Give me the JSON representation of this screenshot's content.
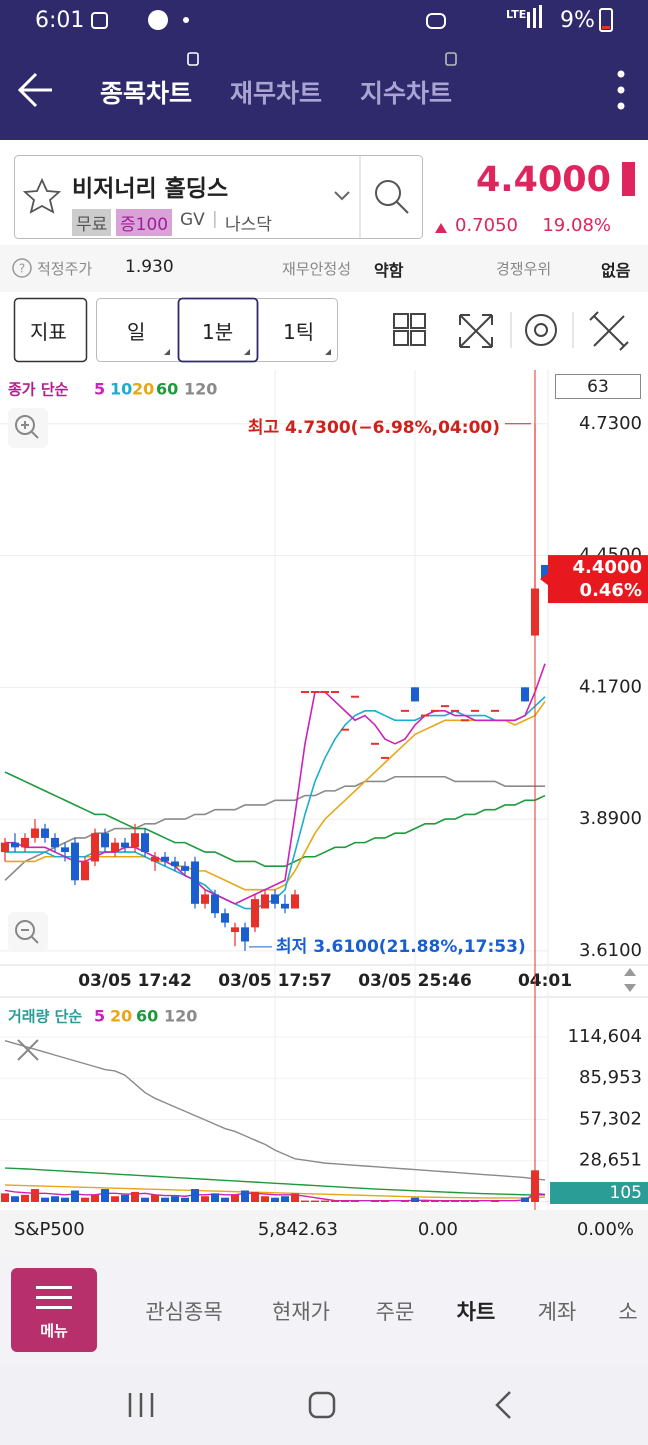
{
  "status_bar": {
    "time": "6:01",
    "network": "LTE",
    "battery": "9%"
  },
  "header": {
    "tabs": [
      "종목차트",
      "재무차트",
      "지수차트"
    ]
  },
  "stock": {
    "name": "비저너리 홀딩스",
    "tags": [
      "무료",
      "증100",
      "GV",
      "나스닥"
    ],
    "price": "4.4000",
    "change": "0.7050",
    "change_pct": "19.08%"
  },
  "info_bar": {
    "items": [
      {
        "label": "적정주가",
        "value": "1.930"
      },
      {
        "label": "재무안정성",
        "value": "약함"
      },
      {
        "label": "경쟁우위",
        "value": "없음"
      }
    ]
  },
  "toolbar": {
    "buttons": [
      "지표",
      "일",
      "1분",
      "1틱"
    ]
  },
  "chart_data": [
    {
      "type": "candlestick",
      "legend_title": "종가 단순",
      "counter": 63,
      "categories": [
        null,
        null,
        null,
        null,
        null,
        null,
        null,
        null,
        null,
        null,
        null,
        null,
        null,
        "03/05 17:42",
        null,
        null,
        null,
        null,
        null,
        null,
        null,
        null,
        null,
        null,
        null,
        null,
        null,
        "03/05 17:57",
        null,
        null,
        null,
        null,
        null,
        null,
        null,
        null,
        null,
        null,
        null,
        null,
        null,
        "03/05 25:46",
        null,
        null,
        null,
        null,
        null,
        null,
        null,
        null,
        null,
        null,
        null,
        null,
        "04:01"
      ],
      "open": [
        3.82,
        3.84,
        3.83,
        3.85,
        3.87,
        3.85,
        3.83,
        3.84,
        3.76,
        3.8,
        3.86,
        3.82,
        3.84,
        3.83,
        3.86,
        3.8,
        3.81,
        3.8,
        3.79,
        3.8,
        3.71,
        3.73,
        3.69,
        3.65,
        3.66,
        3.66,
        3.7,
        3.73,
        3.71,
        3.7,
        4.16,
        4.16,
        4.16,
        4.16,
        4.08,
        4.15,
        null,
        4.05,
        4.02,
        null,
        4.12,
        4.17,
        4.11,
        4.12,
        4.13,
        4.12,
        4.1,
        4.12,
        null,
        4.12,
        null,
        null,
        4.17,
        4.28,
        4.43
      ],
      "high": [
        3.85,
        3.86,
        3.86,
        3.89,
        3.88,
        3.86,
        3.84,
        3.85,
        3.81,
        3.87,
        3.87,
        3.85,
        3.85,
        3.88,
        3.87,
        3.82,
        3.82,
        3.81,
        3.8,
        3.81,
        3.74,
        3.74,
        3.7,
        3.67,
        3.67,
        3.73,
        3.74,
        3.74,
        3.73,
        3.74,
        4.16,
        4.16,
        4.16,
        4.16,
        4.08,
        4.15,
        null,
        4.05,
        4.02,
        null,
        4.12,
        4.17,
        4.11,
        4.12,
        4.13,
        4.12,
        4.1,
        4.12,
        null,
        4.12,
        null,
        null,
        4.17,
        4.73,
        4.43
      ],
      "low": [
        3.8,
        3.82,
        3.82,
        3.84,
        3.84,
        3.82,
        3.8,
        3.75,
        3.76,
        3.79,
        3.82,
        3.81,
        3.82,
        3.82,
        3.81,
        3.78,
        3.79,
        3.78,
        3.77,
        3.7,
        3.7,
        3.68,
        3.66,
        3.62,
        3.61,
        3.65,
        3.7,
        3.7,
        3.69,
        3.7,
        4.16,
        4.16,
        4.16,
        4.16,
        4.08,
        4.15,
        null,
        4.05,
        4.02,
        null,
        4.12,
        4.14,
        4.11,
        4.12,
        4.13,
        4.12,
        4.1,
        4.12,
        null,
        4.12,
        null,
        null,
        4.14,
        4.28,
        4.4
      ],
      "close": [
        3.84,
        3.83,
        3.85,
        3.87,
        3.85,
        3.83,
        3.82,
        3.76,
        3.8,
        3.86,
        3.83,
        3.84,
        3.83,
        3.86,
        3.82,
        3.81,
        3.8,
        3.79,
        3.78,
        3.71,
        3.73,
        3.69,
        3.67,
        3.66,
        3.63,
        3.72,
        3.73,
        3.71,
        3.7,
        3.73,
        4.16,
        4.16,
        4.16,
        4.16,
        4.08,
        4.15,
        null,
        4.05,
        4.02,
        null,
        4.12,
        4.14,
        4.11,
        4.12,
        4.13,
        4.12,
        4.1,
        4.12,
        null,
        4.12,
        null,
        null,
        4.14,
        4.38,
        4.4
      ],
      "series": [
        {
          "name": "5",
          "color": "#cc22bb",
          "values": [
            3.84,
            3.84,
            3.83,
            3.83,
            3.83,
            3.82,
            3.81,
            3.8,
            3.8,
            3.81,
            3.82,
            3.82,
            3.83,
            3.83,
            3.82,
            3.81,
            3.8,
            3.79,
            3.77,
            3.76,
            3.74,
            3.73,
            3.72,
            3.71,
            3.72,
            3.73,
            3.74,
            3.75,
            3.76,
            3.9,
            4.05,
            4.16,
            4.16,
            4.14,
            4.12,
            4.1,
            4.11,
            4.09,
            4.06,
            4.05,
            4.06,
            4.09,
            4.11,
            4.12,
            4.12,
            4.11,
            4.11,
            4.1,
            4.1,
            4.1,
            4.1,
            4.1,
            4.11,
            4.16,
            4.22
          ]
        },
        {
          "name": "10",
          "color": "#1aaecc",
          "values": [
            3.82,
            3.82,
            3.82,
            3.82,
            3.82,
            3.81,
            3.81,
            3.81,
            3.81,
            3.82,
            3.82,
            3.82,
            3.82,
            3.82,
            3.81,
            3.8,
            3.79,
            3.78,
            3.77,
            3.76,
            3.75,
            3.73,
            3.72,
            3.71,
            3.7,
            3.7,
            3.71,
            3.72,
            3.74,
            3.82,
            3.9,
            3.97,
            4.02,
            4.06,
            4.09,
            4.11,
            4.12,
            4.12,
            4.11,
            4.1,
            4.1,
            4.1,
            4.11,
            4.11,
            4.11,
            4.12,
            4.11,
            4.11,
            4.11,
            4.1,
            4.1,
            4.1,
            4.11,
            4.13,
            4.15
          ]
        },
        {
          "name": "20",
          "color": "#e6a817",
          "values": [
            3.8,
            3.8,
            3.8,
            3.8,
            3.81,
            3.81,
            3.81,
            3.81,
            3.81,
            3.81,
            3.81,
            3.81,
            3.81,
            3.81,
            3.81,
            3.8,
            3.8,
            3.79,
            3.79,
            3.78,
            3.78,
            3.77,
            3.76,
            3.75,
            3.74,
            3.74,
            3.74,
            3.74,
            3.75,
            3.78,
            3.82,
            3.86,
            3.89,
            3.91,
            3.93,
            3.95,
            3.97,
            3.99,
            4.01,
            4.03,
            4.05,
            4.07,
            4.08,
            4.09,
            4.1,
            4.1,
            4.1,
            4.1,
            4.1,
            4.1,
            4.1,
            4.09,
            4.1,
            4.11,
            4.14
          ]
        },
        {
          "name": "60",
          "color": "#1e9a3c",
          "values": [
            3.99,
            3.98,
            3.97,
            3.96,
            3.95,
            3.94,
            3.93,
            3.92,
            3.91,
            3.9,
            3.9,
            3.89,
            3.88,
            3.87,
            3.87,
            3.86,
            3.85,
            3.84,
            3.84,
            3.83,
            3.82,
            3.82,
            3.81,
            3.8,
            3.8,
            3.8,
            3.79,
            3.79,
            3.79,
            3.8,
            3.81,
            3.81,
            3.82,
            3.83,
            3.83,
            3.84,
            3.84,
            3.85,
            3.85,
            3.86,
            3.86,
            3.87,
            3.88,
            3.88,
            3.89,
            3.89,
            3.9,
            3.9,
            3.91,
            3.91,
            3.92,
            3.92,
            3.93,
            3.93,
            3.94
          ]
        },
        {
          "name": "120",
          "color": "#8a8a8a",
          "values": [
            3.76,
            3.78,
            3.8,
            3.81,
            3.82,
            3.83,
            3.84,
            3.85,
            3.85,
            3.86,
            3.86,
            3.87,
            3.87,
            3.87,
            3.88,
            3.88,
            3.89,
            3.89,
            3.89,
            3.9,
            3.9,
            3.91,
            3.91,
            3.91,
            3.92,
            3.92,
            3.92,
            3.93,
            3.93,
            3.93,
            3.94,
            3.94,
            3.95,
            3.95,
            3.96,
            3.96,
            3.97,
            3.97,
            3.97,
            3.98,
            3.98,
            3.98,
            3.98,
            3.98,
            3.98,
            3.97,
            3.97,
            3.97,
            3.97,
            3.97,
            3.96,
            3.96,
            3.96,
            3.96,
            3.96
          ]
        }
      ],
      "ylim": [
        3.58,
        4.84
      ],
      "yticks": [
        {
          "value": 4.73,
          "label": "4.7300"
        },
        {
          "value": 4.45,
          "label": "4.4500"
        },
        {
          "value": 4.17,
          "label": "4.1700"
        },
        {
          "value": 3.89,
          "label": "3.8900"
        },
        {
          "value": 3.61,
          "label": "3.6100"
        }
      ],
      "grid": true,
      "high_annotation": "최고 4.7300(−6.98%,04:00)",
      "low_annotation": "최저 3.6100(21.88%,17:53)",
      "last_price": {
        "value": 4.4,
        "label": "4.4000"
      },
      "last_change": "0.46%",
      "up_color": "#e8302a",
      "down_color": "#1a5fd0"
    },
    {
      "type": "bar",
      "legend_title": "거래량 단순",
      "values": [
        6000,
        4000,
        5000,
        9000,
        3000,
        4000,
        3000,
        8000,
        3000,
        5000,
        9000,
        4000,
        5000,
        7000,
        3000,
        5000,
        3000,
        4000,
        3000,
        9000,
        4000,
        6000,
        3000,
        5000,
        8000,
        7000,
        4000,
        3000,
        4000,
        6000,
        1000,
        1000,
        1000,
        1000,
        800,
        800,
        null,
        800,
        800,
        null,
        800,
        3000,
        800,
        800,
        800,
        800,
        800,
        800,
        null,
        800,
        null,
        null,
        3000,
        22000,
        105
      ],
      "series": [
        {
          "name": "5",
          "color": "#cc22bb",
          "values": [
            8000,
            7000,
            6500,
            6000,
            6000,
            5500,
            5000,
            5500,
            5000,
            5000,
            6000,
            6000,
            5500,
            5500,
            6000,
            5000,
            4500,
            4500,
            4000,
            5000,
            5000,
            5500,
            5000,
            5000,
            6000,
            6000,
            5500,
            5000,
            5000,
            5000,
            4000,
            3000,
            2000,
            1000,
            900,
            900,
            900,
            900,
            900,
            900,
            900,
            1200,
            1200,
            1000,
            900,
            900,
            900,
            900,
            900,
            900,
            900,
            900,
            1500,
            5800,
            5300
          ]
        },
        {
          "name": "20",
          "color": "#e6a817",
          "values": [
            11800,
            11600,
            11400,
            11200,
            11000,
            10800,
            10600,
            10400,
            10200,
            10000,
            9800,
            9600,
            9400,
            9200,
            9000,
            8800,
            8600,
            8400,
            8200,
            8000,
            7800,
            7600,
            7400,
            7200,
            7000,
            6800,
            6600,
            6400,
            6200,
            6000,
            5800,
            5600,
            5400,
            5200,
            5000,
            4800,
            4600,
            4400,
            4200,
            4000,
            3800,
            3600,
            3400,
            3300,
            3200,
            3100,
            3000,
            2900,
            2800,
            2800,
            2800,
            2800,
            2800,
            3000,
            3400
          ]
        },
        {
          "name": "60",
          "color": "#1e9a3c",
          "values": [
            23600,
            23300,
            23000,
            22600,
            22200,
            21800,
            21400,
            21000,
            20600,
            20200,
            19800,
            19400,
            19000,
            18600,
            18200,
            17800,
            17400,
            17000,
            16600,
            16200,
            15800,
            15400,
            15000,
            14600,
            14200,
            13800,
            13400,
            13000,
            12600,
            12200,
            11800,
            11400,
            11000,
            10600,
            10200,
            9800,
            9400,
            9000,
            8700,
            8400,
            8100,
            7800,
            7500,
            7200,
            6900,
            6600,
            6300,
            6000,
            5800,
            5600,
            5400,
            5200,
            5000,
            4900,
            4900
          ]
        },
        {
          "name": "120",
          "color": "#8a8a8a",
          "values": [
            112000,
            110000,
            108000,
            106000,
            104000,
            102000,
            100000,
            98000,
            96000,
            94000,
            92000,
            91000,
            88000,
            82000,
            76000,
            72000,
            69000,
            66000,
            63000,
            60000,
            57000,
            54000,
            51000,
            49000,
            46000,
            43000,
            40000,
            36000,
            33000,
            30000,
            29000,
            28000,
            27000,
            26500,
            26000,
            25500,
            25000,
            24500,
            24000,
            23500,
            23000,
            22500,
            22000,
            21500,
            21000,
            20500,
            20000,
            19500,
            19000,
            18500,
            18000,
            17500,
            17000,
            16000,
            15300
          ]
        }
      ],
      "ylim": [
        0,
        136800
      ],
      "yticks": [
        {
          "value": 28651,
          "label": "28,651"
        },
        {
          "value": 57302,
          "label": "57,302"
        },
        {
          "value": 85953,
          "label": "85,953"
        },
        {
          "value": 114604,
          "label": "114,604"
        }
      ]
    }
  ],
  "index_bar": {
    "name": "S&P500",
    "value": "5,842.63",
    "change": "0.00",
    "change_pct": "0.00%"
  },
  "bottom_nav": {
    "menu": "메뉴",
    "items": [
      "관심종목",
      "현재가",
      "주문",
      "차트",
      "계좌",
      "소"
    ]
  }
}
